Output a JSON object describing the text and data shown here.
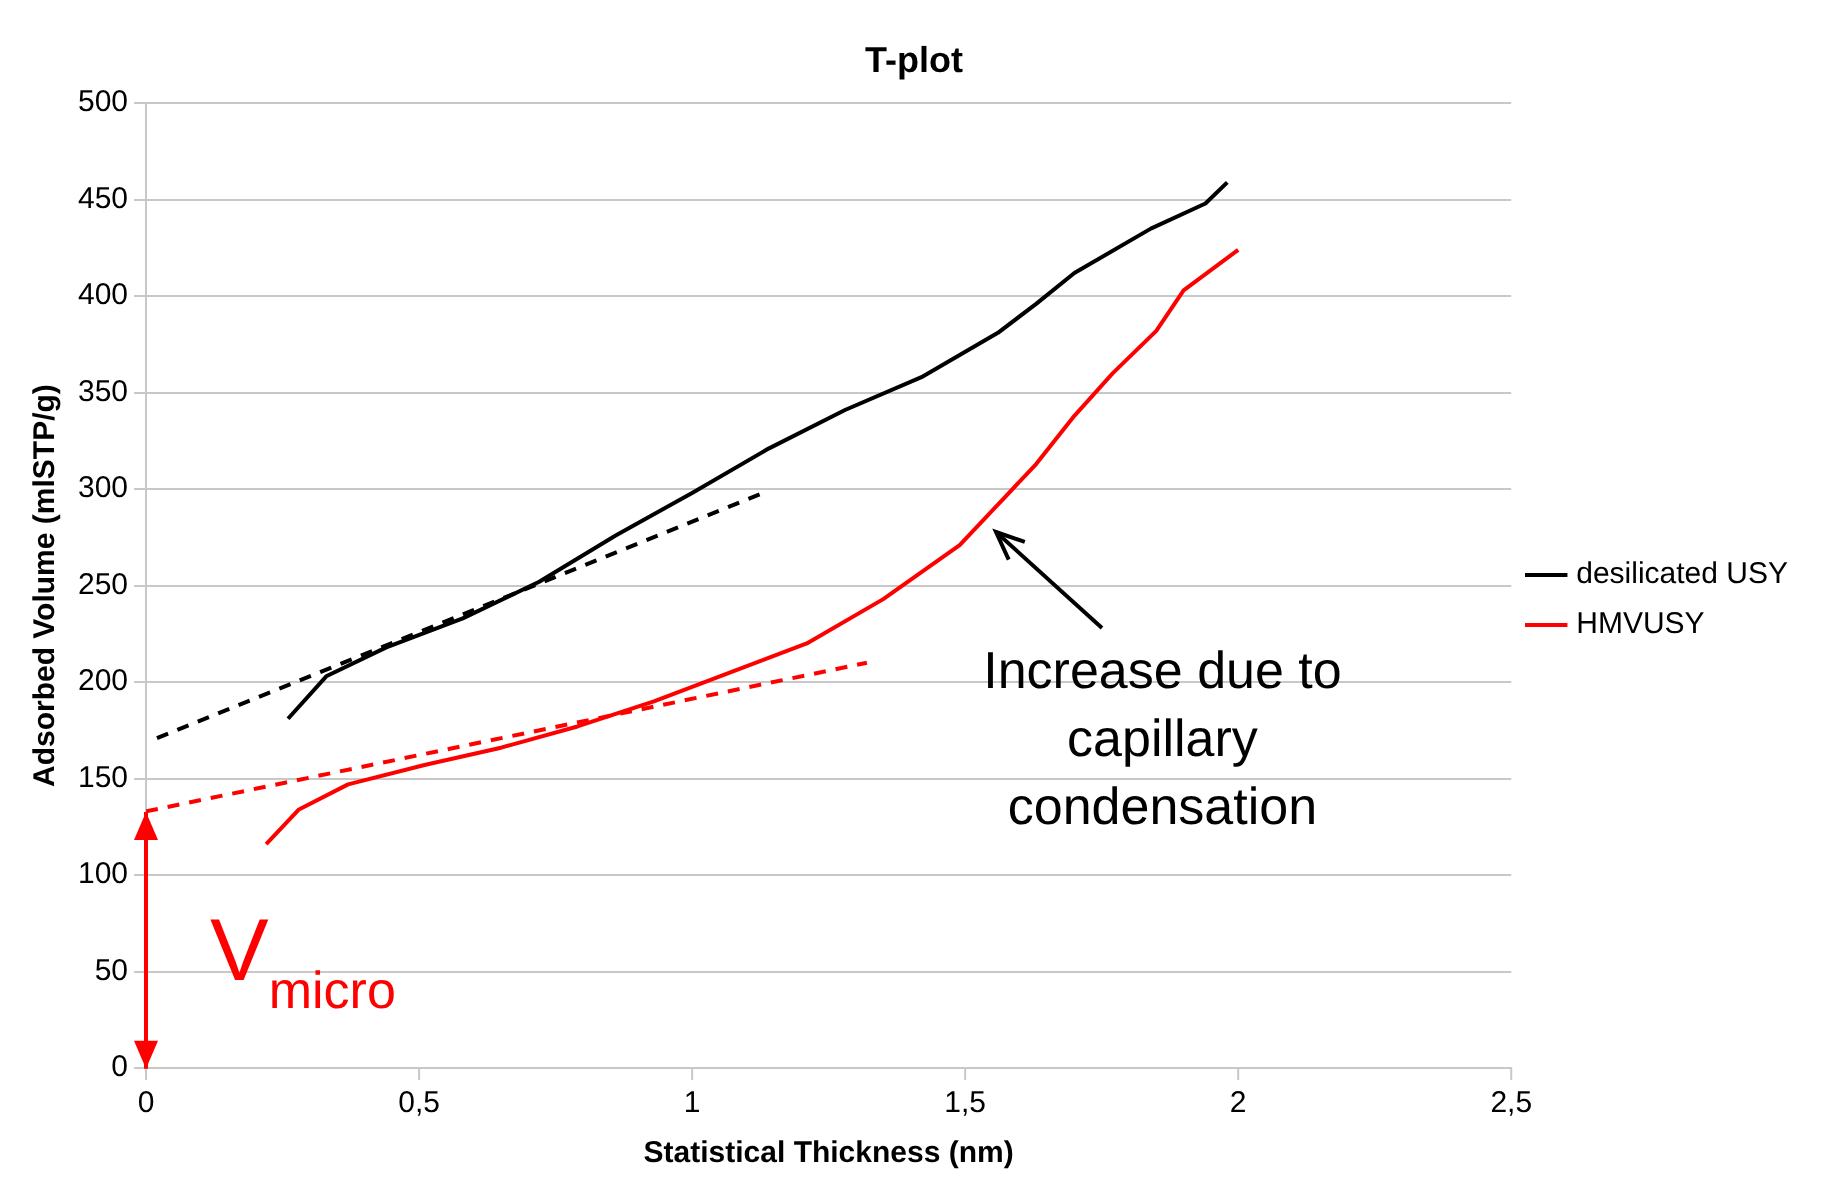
{
  "chart_data": {
    "type": "line",
    "title": "T-plot",
    "xlabel": "Statistical Thickness (nm)",
    "ylabel": "Adsorbed Volume (mlSTP/g)",
    "series": [
      {
        "name": "desilicated USY",
        "color": "#000000",
        "x": [
          0.26,
          0.33,
          0.44,
          0.58,
          0.72,
          0.86,
          1.0,
          1.14,
          1.28,
          1.42,
          1.56,
          1.63,
          1.7,
          1.84,
          1.94,
          1.98
        ],
        "values": [
          181,
          203,
          218,
          233,
          252,
          276,
          298,
          321,
          341,
          358,
          381,
          396,
          412,
          435,
          448,
          459
        ]
      },
      {
        "name": "HMVUSY",
        "color": "#ff0000",
        "x": [
          0.22,
          0.28,
          0.37,
          0.51,
          0.65,
          0.79,
          0.93,
          1.07,
          1.21,
          1.35,
          1.49,
          1.57,
          1.63,
          1.7,
          1.77,
          1.85,
          1.9,
          2.0
        ],
        "values": [
          116,
          134,
          147,
          157,
          166,
          177,
          190,
          205,
          220,
          243,
          271,
          295,
          313,
          338,
          360,
          382,
          403,
          424
        ]
      },
      {
        "type": "line",
        "color": "#000000",
        "line_style": "dashed",
        "x": [
          0.02,
          1.13
        ],
        "values": [
          171,
          298
        ]
      },
      {
        "type": "line",
        "color": "#ff0000",
        "line_style": "dashed",
        "x": [
          0,
          1.32
        ],
        "values": [
          133,
          210
        ]
      }
    ],
    "xlim": [
      0,
      2.5
    ],
    "xticks": [
      0,
      {
        "value": 0.5,
        "label": "0,5"
      },
      1,
      {
        "value": 1.5,
        "label": "1,5"
      },
      2,
      {
        "value": 2.5,
        "label": "2,5"
      }
    ],
    "ylim": [
      0,
      500
    ],
    "yticks": [
      0,
      50,
      100,
      150,
      200,
      250,
      300,
      350,
      400,
      450,
      500
    ],
    "grid": "y",
    "legend": "right",
    "marker": "none",
    "line_style": "solid",
    "annotations": [
      {
        "text": "Increase due to\ncapillary\ncondensation",
        "x": 1.55,
        "y": 280
      },
      {
        "text": "V$_{micro}$",
        "x": 0,
        "y": 133
      }
    ]
  }
}
